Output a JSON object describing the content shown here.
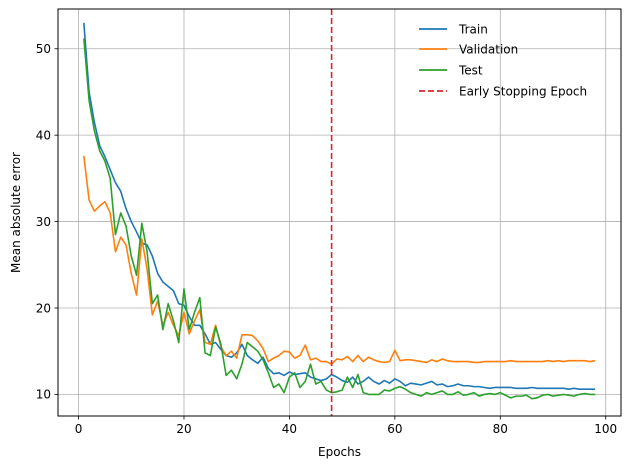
{
  "chart_data": {
    "type": "line",
    "title": "",
    "xlabel": "Epochs",
    "ylabel": "Mean absolute error",
    "xlim": [
      -3.9,
      102.9
    ],
    "ylim": [
      7.5,
      54.6
    ],
    "xticks": [
      0,
      20,
      40,
      60,
      80,
      100
    ],
    "yticks": [
      10,
      20,
      30,
      40,
      50
    ],
    "grid": true,
    "legend_position": "top-right",
    "series": [
      {
        "name": "Train",
        "color": "#1f77b4",
        "x": [
          1,
          2,
          3,
          4,
          5,
          6,
          7,
          8,
          9,
          10,
          11,
          12,
          13,
          14,
          15,
          16,
          17,
          18,
          19,
          20,
          21,
          22,
          23,
          24,
          25,
          26,
          27,
          28,
          29,
          30,
          31,
          32,
          33,
          34,
          35,
          36,
          37,
          38,
          39,
          40,
          41,
          42,
          43,
          44,
          45,
          46,
          47,
          48,
          49,
          50,
          51,
          52,
          53,
          54,
          55,
          56,
          57,
          58,
          59,
          60,
          61,
          62,
          63,
          64,
          65,
          66,
          67,
          68,
          69,
          70,
          71,
          72,
          73,
          74,
          75,
          76,
          77,
          78,
          79,
          80,
          81,
          82,
          83,
          84,
          85,
          86,
          87,
          88,
          89,
          90,
          91,
          92,
          93,
          94,
          95,
          96,
          97,
          98
        ],
        "y": [
          53.0,
          45.0,
          41.5,
          38.8,
          37.5,
          36.0,
          34.5,
          33.5,
          31.5,
          30.0,
          28.8,
          27.5,
          27.3,
          26.0,
          24.0,
          23.0,
          22.5,
          22.0,
          20.5,
          20.3,
          19.0,
          18.0,
          18.0,
          17.0,
          15.8,
          16.0,
          15.2,
          14.5,
          14.3,
          14.8,
          15.8,
          14.5,
          14.0,
          13.6,
          14.3,
          13.0,
          12.4,
          12.5,
          12.2,
          12.6,
          12.3,
          12.4,
          12.5,
          12.0,
          11.8,
          11.6,
          11.8,
          12.3,
          12.0,
          11.6,
          11.4,
          12.0,
          11.2,
          11.5,
          12.0,
          11.5,
          11.2,
          11.6,
          11.3,
          11.8,
          11.5,
          11.0,
          11.3,
          11.2,
          11.1,
          11.3,
          11.5,
          11.1,
          11.2,
          10.9,
          11.0,
          11.2,
          11.0,
          11.0,
          10.9,
          10.9,
          10.8,
          10.7,
          10.8,
          10.8,
          10.8,
          10.8,
          10.7,
          10.7,
          10.7,
          10.8,
          10.7,
          10.7,
          10.7,
          10.7,
          10.7,
          10.7,
          10.6,
          10.7,
          10.6,
          10.6,
          10.6,
          10.6
        ]
      },
      {
        "name": "Validation",
        "color": "#ff7f0e",
        "x": [
          1,
          2,
          3,
          4,
          5,
          6,
          7,
          8,
          9,
          10,
          11,
          12,
          13,
          14,
          15,
          16,
          17,
          18,
          19,
          20,
          21,
          22,
          23,
          24,
          25,
          26,
          27,
          28,
          29,
          30,
          31,
          32,
          33,
          34,
          35,
          36,
          37,
          38,
          39,
          40,
          41,
          42,
          43,
          44,
          45,
          46,
          47,
          48,
          49,
          50,
          51,
          52,
          53,
          54,
          55,
          56,
          57,
          58,
          59,
          60,
          61,
          62,
          63,
          64,
          65,
          66,
          67,
          68,
          69,
          70,
          71,
          72,
          73,
          74,
          75,
          76,
          77,
          78,
          79,
          80,
          81,
          82,
          83,
          84,
          85,
          86,
          87,
          88,
          89,
          90,
          91,
          92,
          93,
          94,
          95,
          96,
          97,
          98
        ],
        "y": [
          37.6,
          32.5,
          31.2,
          31.8,
          32.3,
          31.0,
          26.5,
          28.2,
          27.3,
          24.0,
          21.5,
          28.0,
          24.5,
          19.2,
          20.8,
          18.0,
          19.5,
          18.0,
          16.8,
          19.5,
          17.0,
          18.5,
          19.8,
          16.0,
          15.8,
          18.0,
          15.5,
          14.5,
          15.0,
          14.2,
          16.9,
          16.9,
          16.8,
          16.2,
          15.3,
          13.8,
          14.2,
          14.5,
          15.0,
          14.9,
          14.2,
          14.5,
          15.7,
          14.0,
          14.2,
          13.8,
          13.8,
          13.5,
          14.1,
          14.0,
          14.4,
          13.8,
          14.5,
          13.8,
          14.3,
          14.0,
          13.8,
          13.7,
          13.8,
          15.1,
          13.9,
          14.0,
          14.0,
          13.9,
          13.8,
          13.7,
          14.0,
          13.8,
          14.1,
          13.9,
          13.8,
          13.8,
          13.8,
          13.8,
          13.7,
          13.7,
          13.8,
          13.8,
          13.8,
          13.8,
          13.8,
          13.9,
          13.8,
          13.8,
          13.8,
          13.8,
          13.8,
          13.8,
          13.9,
          13.8,
          13.9,
          13.8,
          13.9,
          13.9,
          13.9,
          13.9,
          13.8,
          13.9
        ]
      },
      {
        "name": "Test",
        "color": "#2ca02c",
        "x": [
          1,
          2,
          3,
          4,
          5,
          6,
          7,
          8,
          9,
          10,
          11,
          12,
          13,
          14,
          15,
          16,
          17,
          18,
          19,
          20,
          21,
          22,
          23,
          24,
          25,
          26,
          27,
          28,
          29,
          30,
          31,
          32,
          33,
          34,
          35,
          36,
          37,
          38,
          39,
          40,
          41,
          42,
          43,
          44,
          45,
          46,
          47,
          48,
          49,
          50,
          51,
          52,
          53,
          54,
          55,
          56,
          57,
          58,
          59,
          60,
          61,
          62,
          63,
          64,
          65,
          66,
          67,
          68,
          69,
          70,
          71,
          72,
          73,
          74,
          75,
          76,
          77,
          78,
          79,
          80,
          81,
          82,
          83,
          84,
          85,
          86,
          87,
          88,
          89,
          90,
          91,
          92,
          93,
          94,
          95,
          96,
          97,
          98
        ],
        "y": [
          51.2,
          44.0,
          40.5,
          38.2,
          37.0,
          35.0,
          28.5,
          31.0,
          29.5,
          26.0,
          23.8,
          29.8,
          26.5,
          20.5,
          21.5,
          17.5,
          20.5,
          18.5,
          16.0,
          22.2,
          17.5,
          19.5,
          21.2,
          14.8,
          14.5,
          17.8,
          15.8,
          12.2,
          12.8,
          11.8,
          13.5,
          16.0,
          15.5,
          15.0,
          14.0,
          12.5,
          10.8,
          11.2,
          10.2,
          12.0,
          12.5,
          10.8,
          11.5,
          13.5,
          11.2,
          11.5,
          10.5,
          10.2,
          10.3,
          10.5,
          12.0,
          10.8,
          12.3,
          10.2,
          10.0,
          10.0,
          10.0,
          10.5,
          10.4,
          10.7,
          10.9,
          10.6,
          10.2,
          10.0,
          9.8,
          10.2,
          10.0,
          10.2,
          10.4,
          10.0,
          10.0,
          10.3,
          9.9,
          10.0,
          10.2,
          9.8,
          10.0,
          10.1,
          10.0,
          10.2,
          9.9,
          9.6,
          9.8,
          9.8,
          9.9,
          9.5,
          9.6,
          9.9,
          10.0,
          9.8,
          9.9,
          10.0,
          9.9,
          9.8,
          10.0,
          10.1,
          10.0,
          10.0
        ]
      }
    ],
    "reference_lines": [
      {
        "name": "Early Stopping Epoch",
        "orientation": "vertical",
        "x": 48,
        "color": "#d62728",
        "style": "dashed"
      }
    ]
  }
}
